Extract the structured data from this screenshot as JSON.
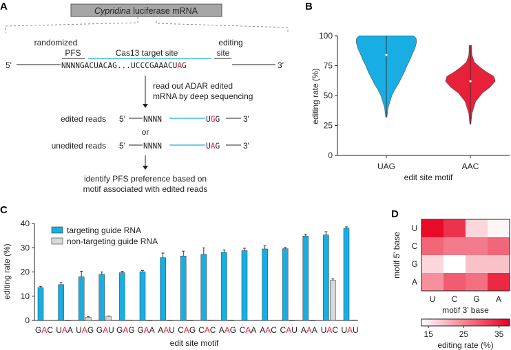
{
  "colors": {
    "blue": "#19aee3",
    "red": "#e8213a",
    "grey": "#d9d9d9",
    "cyan_line": "#3bbde6",
    "edit_red": "#e8213a"
  },
  "panelA": {
    "label": "A",
    "box_italic": "Cypridina",
    "box_rest": " luciferase mRNA",
    "randomized": "randomized",
    "pfs": "PFS",
    "target": "Cas13 target site",
    "editing": "editing",
    "site": "site",
    "five": "5'",
    "three": "3'",
    "seq_pre": "NNNNGACUACAG...UCCCGAAACU",
    "seq_edit": "A",
    "seq_post": "G",
    "step1a": "read out ADAR edited",
    "step1b": "mRNA by deep sequencing",
    "edited_label": "edited reads",
    "unedited_label": "unedited reads",
    "nnnn": "NNNN",
    "edited_pre": "U",
    "edited_mid": "G",
    "edited_post": "G",
    "unedited_pre": "U",
    "unedited_mid": "A",
    "unedited_post": "G",
    "or": "or",
    "step2a": "identify PFS preference based on",
    "step2b": "motif associated with edited reads"
  },
  "chart_data": [
    {
      "panel": "B",
      "type": "violin",
      "ylabel": "editing rate (%)",
      "xlabel": "edit site motif",
      "ylim": [
        0,
        100
      ],
      "yticks": [
        "0",
        "25",
        "50",
        "75",
        "100"
      ],
      "categories": [
        "UAG",
        "AAC"
      ],
      "series": [
        {
          "category": "UAG",
          "color": "#19aee3",
          "min": 32,
          "max": 100,
          "median": 84,
          "density": [
            [
              32,
              0.02
            ],
            [
              40,
              0.06
            ],
            [
              45,
              0.12
            ],
            [
              50,
              0.18
            ],
            [
              55,
              0.28
            ],
            [
              60,
              0.4
            ],
            [
              65,
              0.5
            ],
            [
              70,
              0.6
            ],
            [
              75,
              0.68
            ],
            [
              80,
              0.78
            ],
            [
              85,
              0.86
            ],
            [
              90,
              0.95
            ],
            [
              95,
              1.0
            ],
            [
              98,
              0.98
            ],
            [
              100,
              0.9
            ]
          ]
        },
        {
          "category": "AAC",
          "color": "#e8213a",
          "min": 26,
          "max": 92,
          "median": 62,
          "density": [
            [
              26,
              0.02
            ],
            [
              35,
              0.06
            ],
            [
              45,
              0.2
            ],
            [
              52,
              0.45
            ],
            [
              57,
              0.75
            ],
            [
              62,
              0.95
            ],
            [
              66,
              0.9
            ],
            [
              70,
              0.6
            ],
            [
              74,
              0.35
            ],
            [
              78,
              0.15
            ],
            [
              84,
              0.06
            ],
            [
              88,
              0.05
            ],
            [
              92,
              0.05
            ]
          ]
        }
      ]
    },
    {
      "panel": "C",
      "type": "bar",
      "ylabel": "editing rate (%)",
      "xlabel": "edit site motif",
      "ylim": [
        0,
        40
      ],
      "yticks": [
        "0",
        "10",
        "20",
        "30",
        "40"
      ],
      "legend_position": "top-left",
      "categories": [
        [
          "G",
          "A",
          "C"
        ],
        [
          "U",
          "A",
          "A"
        ],
        [
          "U",
          "A",
          "G"
        ],
        [
          "G",
          "A",
          "U"
        ],
        [
          "G",
          "A",
          "G"
        ],
        [
          "G",
          "A",
          "A"
        ],
        [
          "A",
          "A",
          "U"
        ],
        [
          "C",
          "A",
          "G"
        ],
        [
          "C",
          "A",
          "C"
        ],
        [
          "A",
          "A",
          "G"
        ],
        [
          "C",
          "A",
          "A"
        ],
        [
          "A",
          "A",
          "C"
        ],
        [
          "C",
          "A",
          "U"
        ],
        [
          "A",
          "A",
          "A"
        ],
        [
          "U",
          "A",
          "C"
        ],
        [
          "U",
          "A",
          "U"
        ]
      ],
      "series": [
        {
          "name": "targeting guide RNA",
          "color": "#19aee3",
          "values": [
            13.5,
            14.8,
            18.0,
            19.0,
            19.7,
            20.1,
            25.9,
            26.6,
            27.3,
            28.1,
            28.8,
            29.5,
            29.6,
            34.8,
            35.3,
            38.0
          ],
          "errors": [
            0.6,
            0.8,
            2.3,
            1.0,
            0.6,
            0.5,
            1.9,
            2.0,
            2.6,
            1.0,
            1.0,
            1.3,
            0.5,
            0.8,
            1.3,
            0.6
          ]
        },
        {
          "name": "non-targeting guide RNA",
          "color": "#d9d9d9",
          "values": [
            0.1,
            0,
            1.3,
            1.7,
            0.2,
            0,
            0,
            0,
            0.2,
            0,
            0.1,
            0.1,
            0,
            0,
            16.6,
            0.2
          ],
          "errors": [
            0,
            0,
            0.3,
            0.1,
            0,
            0,
            0,
            0,
            0,
            0,
            0,
            0,
            0,
            0,
            0.5,
            0
          ]
        }
      ]
    },
    {
      "panel": "D",
      "type": "heatmap",
      "ylabel": "motif 5' base",
      "xlabel": "motif 3' base",
      "rows": [
        "U",
        "C",
        "G",
        "A"
      ],
      "cols": [
        "U",
        "C",
        "G",
        "A"
      ],
      "values": [
        [
          37,
          33,
          17,
          14
        ],
        [
          28,
          26,
          26,
          28
        ],
        [
          17,
          13,
          19,
          19
        ],
        [
          24,
          29,
          27,
          34
        ]
      ],
      "colorbar": {
        "label": "editing rate (%)",
        "range": [
          13,
          38
        ],
        "ticks": [
          "15",
          "25",
          "35"
        ],
        "low": "#ffffff",
        "high": "#e8001f"
      }
    }
  ],
  "panelB": {
    "label": "B"
  },
  "panelC": {
    "label": "C"
  },
  "panelD": {
    "label": "D"
  }
}
